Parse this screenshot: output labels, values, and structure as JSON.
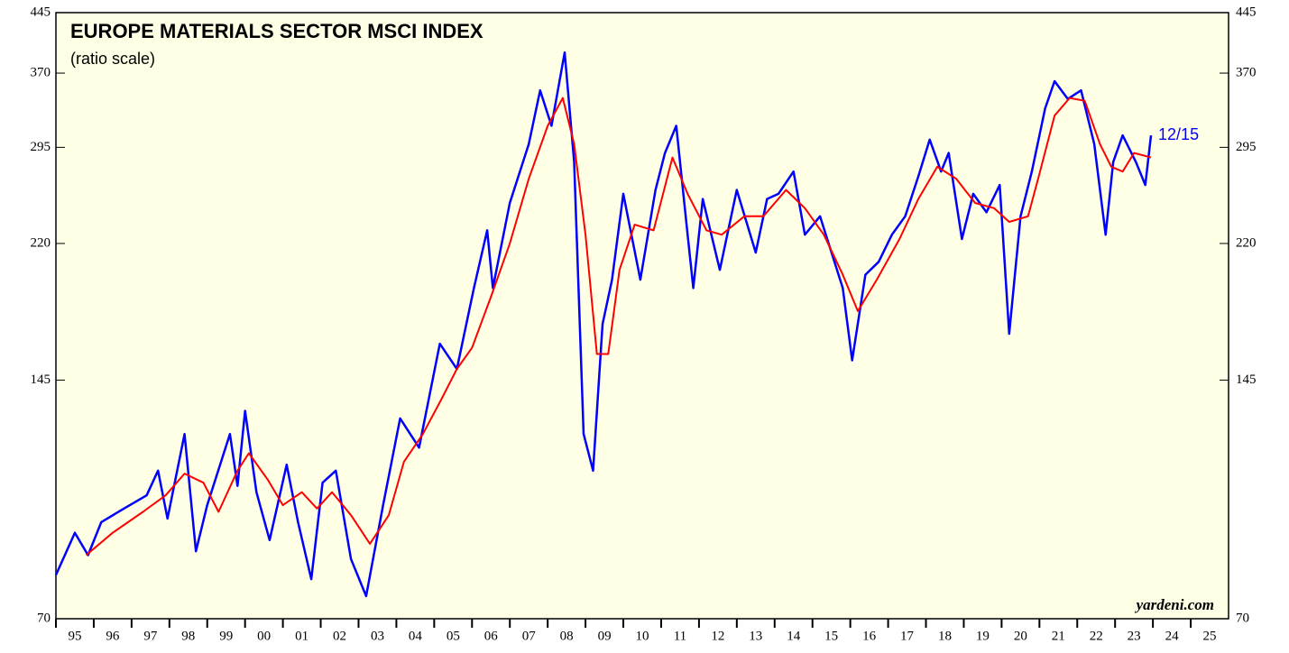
{
  "chart_data": {
    "type": "line",
    "title": "EUROPE MATERIALS SECTOR MSCI INDEX",
    "subtitle": "(ratio scale)",
    "annotation": "12/15",
    "source": "yardeni.com",
    "log_scale": true,
    "xlim": [
      1995,
      2026
    ],
    "xticks": [
      {
        "value": 1995.5,
        "label": "95"
      },
      {
        "value": 1996.5,
        "label": "96"
      },
      {
        "value": 1997.5,
        "label": "97"
      },
      {
        "value": 1998.5,
        "label": "98"
      },
      {
        "value": 1999.5,
        "label": "99"
      },
      {
        "value": 2000.5,
        "label": "00"
      },
      {
        "value": 2001.5,
        "label": "01"
      },
      {
        "value": 2002.5,
        "label": "02"
      },
      {
        "value": 2003.5,
        "label": "03"
      },
      {
        "value": 2004.5,
        "label": "04"
      },
      {
        "value": 2005.5,
        "label": "05"
      },
      {
        "value": 2006.5,
        "label": "06"
      },
      {
        "value": 2007.5,
        "label": "07"
      },
      {
        "value": 2008.5,
        "label": "08"
      },
      {
        "value": 2009.5,
        "label": "09"
      },
      {
        "value": 2010.5,
        "label": "10"
      },
      {
        "value": 2011.5,
        "label": "11"
      },
      {
        "value": 2012.5,
        "label": "12"
      },
      {
        "value": 2013.5,
        "label": "13"
      },
      {
        "value": 2014.5,
        "label": "14"
      },
      {
        "value": 2015.5,
        "label": "15"
      },
      {
        "value": 2016.5,
        "label": "16"
      },
      {
        "value": 2017.5,
        "label": "17"
      },
      {
        "value": 2018.5,
        "label": "18"
      },
      {
        "value": 2019.5,
        "label": "19"
      },
      {
        "value": 2020.5,
        "label": "20"
      },
      {
        "value": 2021.5,
        "label": "21"
      },
      {
        "value": 2022.5,
        "label": "22"
      },
      {
        "value": 2023.5,
        "label": "23"
      },
      {
        "value": 2024.5,
        "label": "24"
      },
      {
        "value": 2025.5,
        "label": "25"
      }
    ],
    "ylim": [
      70,
      445
    ],
    "yticks": [
      70,
      145,
      220,
      295,
      370,
      445
    ],
    "series": [
      {
        "color": "#0000ff",
        "x": [
          1995.0,
          1995.5,
          1995.85,
          1996.2,
          1996.8,
          1997.4,
          1997.7,
          1997.95,
          1998.4,
          1998.7,
          1999.0,
          1999.6,
          1999.8,
          2000.0,
          2000.3,
          2000.65,
          2001.1,
          2001.4,
          2001.75,
          2002.05,
          2002.4,
          2002.8,
          2003.2,
          2003.65,
          2004.1,
          2004.6,
          2005.15,
          2005.6,
          2006.05,
          2006.4,
          2006.55,
          2007.0,
          2007.5,
          2007.8,
          2008.1,
          2008.45,
          2008.7,
          2008.95,
          2009.2,
          2009.45,
          2009.7,
          2010.0,
          2010.45,
          2010.85,
          2011.1,
          2011.4,
          2011.7,
          2011.85,
          2012.1,
          2012.55,
          2013.0,
          2013.5,
          2013.8,
          2014.1,
          2014.5,
          2014.8,
          2015.2,
          2015.8,
          2016.05,
          2016.4,
          2016.75,
          2017.1,
          2017.45,
          2017.8,
          2018.1,
          2018.4,
          2018.6,
          2018.95,
          2019.25,
          2019.6,
          2019.95,
          2020.2,
          2020.5,
          2020.8,
          2021.15,
          2021.4,
          2021.75,
          2022.1,
          2022.45,
          2022.75,
          2022.95,
          2023.2,
          2023.55,
          2023.8,
          2023.95
        ],
        "values": [
          80,
          91,
          85,
          94,
          98,
          102,
          110,
          95,
          123,
          86,
          99,
          123,
          105,
          132,
          103,
          89,
          112,
          94,
          79,
          106,
          110,
          84,
          75,
          99,
          129,
          118,
          162,
          150,
          192,
          229,
          192,
          249,
          298,
          351,
          315,
          394,
          282,
          123,
          110,
          172,
          197,
          256,
          197,
          259,
          290,
          315,
          226,
          192,
          252,
          203,
          259,
          214,
          252,
          256,
          274,
          226,
          239,
          192,
          154,
          200,
          208,
          226,
          239,
          270,
          302,
          274,
          290,
          223,
          256,
          242,
          263,
          167,
          239,
          274,
          332,
          361,
          342,
          351,
          298,
          226,
          282,
          306,
          282,
          263,
          306
        ]
      },
      {
        "color": "#ff0000",
        "x": [
          1995.8,
          1996.5,
          1997.3,
          1997.9,
          1998.4,
          1998.9,
          1999.3,
          1999.8,
          2000.1,
          2000.6,
          2001.0,
          2001.5,
          2001.9,
          2002.3,
          2002.8,
          2003.3,
          2003.8,
          2004.2,
          2004.7,
          2005.2,
          2005.6,
          2006.0,
          2006.5,
          2007.0,
          2007.5,
          2008.0,
          2008.4,
          2008.7,
          2009.0,
          2009.3,
          2009.6,
          2009.9,
          2010.3,
          2010.8,
          2011.3,
          2011.7,
          2012.2,
          2012.6,
          2013.2,
          2013.7,
          2014.3,
          2014.8,
          2015.3,
          2015.8,
          2016.2,
          2016.7,
          2017.3,
          2017.8,
          2018.3,
          2018.8,
          2019.3,
          2019.8,
          2020.2,
          2020.7,
          2021.0,
          2021.4,
          2021.8,
          2022.2,
          2022.6,
          2022.9,
          2023.2,
          2023.5,
          2023.95
        ],
        "values": [
          85,
          91,
          97,
          102,
          109,
          106,
          97,
          110,
          116,
          107,
          99,
          103,
          98,
          103,
          96,
          88,
          96,
          113,
          123,
          137,
          150,
          160,
          187,
          220,
          268,
          315,
          343,
          298,
          226,
          157,
          157,
          203,
          233,
          229,
          286,
          256,
          229,
          226,
          239,
          239,
          259,
          245,
          226,
          200,
          179,
          197,
          223,
          252,
          278,
          268,
          249,
          245,
          235,
          239,
          272,
          325,
          343,
          340,
          298,
          278,
          274,
          290,
          286
        ]
      }
    ]
  }
}
